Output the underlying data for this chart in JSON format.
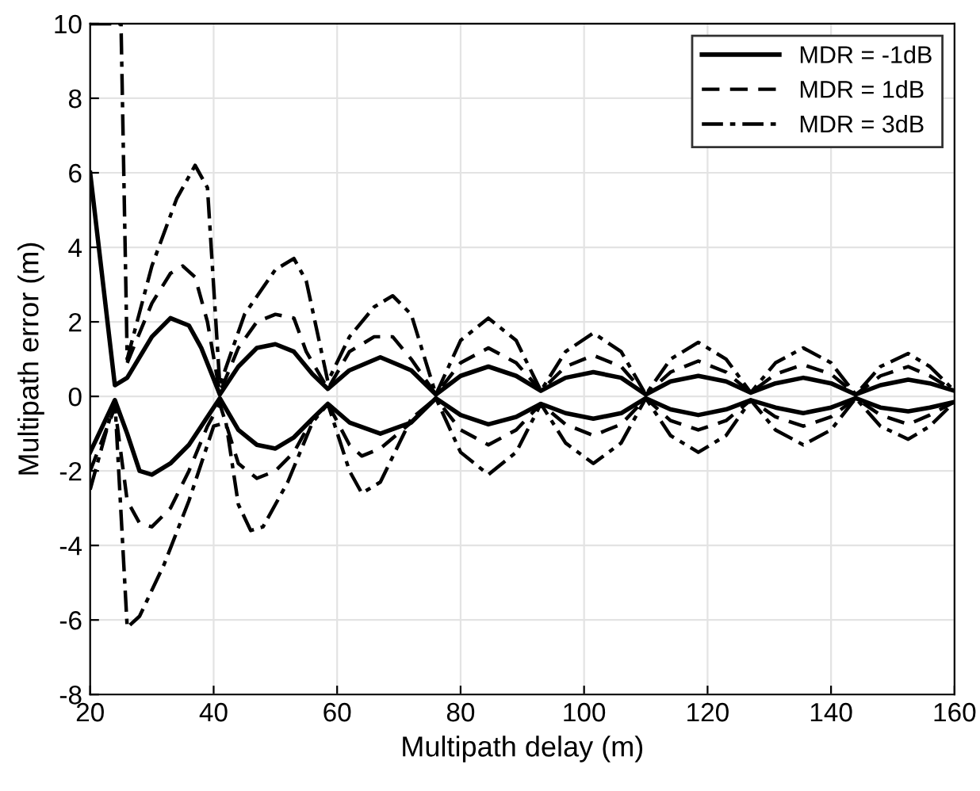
{
  "chart_data": {
    "type": "line",
    "xlabel": "Multipath delay (m)",
    "ylabel": "Multipath error (m)",
    "xlim": [
      20,
      160
    ],
    "ylim": [
      -8,
      10
    ],
    "xticks": [
      20,
      40,
      60,
      80,
      100,
      120,
      140,
      160
    ],
    "yticks": [
      -8,
      -6,
      -4,
      -2,
      0,
      2,
      4,
      6,
      8,
      10
    ],
    "grid": true,
    "legend": "top right",
    "marker": "none",
    "series": [
      {
        "name": "MDR = -1dB",
        "color": "#000000",
        "line_style": "solid",
        "x": [
          20,
          24,
          26,
          30,
          33,
          36,
          38,
          41,
          44,
          47,
          50,
          53,
          56,
          58.5,
          62,
          67,
          72,
          76,
          80,
          84.5,
          89,
          93,
          97,
          101.5,
          106,
          110,
          114,
          118.5,
          123,
          127,
          131,
          135.5,
          140,
          144,
          148,
          152.5,
          156,
          160
        ],
        "values": [
          6,
          0.3,
          0.5,
          1.6,
          2.1,
          1.9,
          1.3,
          0.05,
          0.8,
          1.3,
          1.4,
          1.2,
          0.6,
          0.2,
          0.7,
          1.05,
          0.7,
          0.05,
          0.55,
          0.8,
          0.55,
          0.15,
          0.5,
          0.65,
          0.5,
          0.05,
          0.4,
          0.55,
          0.4,
          0.1,
          0.35,
          0.5,
          0.35,
          0.05,
          0.3,
          0.45,
          0.35,
          0.15
        ]
      },
      {
        "name": "MDR = 1dB",
        "color": "#000000",
        "line_style": "dashed",
        "x": [
          26,
          30,
          33,
          35,
          37,
          39,
          41,
          44,
          47,
          50,
          53,
          55,
          58.5,
          62,
          66,
          69,
          72,
          76,
          80,
          84.5,
          89,
          93,
          97,
          101.5,
          106,
          110,
          114,
          118.5,
          123,
          127,
          131,
          135.5,
          140,
          144,
          148,
          152.5,
          156,
          160
        ],
        "values": [
          0.9,
          2.5,
          3.3,
          3.5,
          3.2,
          2.0,
          0.1,
          1.3,
          2.0,
          2.2,
          2.1,
          1.2,
          0.2,
          1.2,
          1.6,
          1.6,
          1.0,
          0.05,
          0.9,
          1.3,
          0.9,
          0.15,
          0.8,
          1.1,
          0.8,
          0.05,
          0.65,
          0.95,
          0.65,
          0.1,
          0.6,
          0.85,
          0.6,
          0.05,
          0.55,
          0.8,
          0.55,
          0.15
        ]
      },
      {
        "name": "MDR = 3dB",
        "color": "#000000",
        "line_style": "dashdot",
        "x": [
          20,
          25,
          26,
          30,
          34,
          37,
          39,
          41,
          45,
          50,
          53,
          55,
          58.5,
          62,
          66,
          69,
          72,
          76,
          80,
          84.5,
          89,
          93,
          97,
          101.5,
          106,
          110,
          114,
          118.5,
          123,
          127,
          131,
          135.5,
          140,
          144,
          148,
          152.5,
          156,
          160
        ],
        "values": [
          10,
          10,
          1.0,
          3.5,
          5.3,
          6.2,
          5.6,
          0.3,
          2.2,
          3.4,
          3.7,
          3.1,
          0.4,
          1.6,
          2.4,
          2.7,
          2.2,
          0.05,
          1.5,
          2.1,
          1.5,
          0.15,
          1.2,
          1.7,
          1.2,
          0.05,
          1.0,
          1.45,
          1.0,
          0.1,
          0.9,
          1.3,
          0.9,
          0.05,
          0.8,
          1.15,
          0.8,
          0.15
        ]
      },
      {
        "color": "#000000",
        "line_style": "solid",
        "x": [
          20,
          24,
          26,
          28,
          30,
          33,
          36,
          38,
          41,
          44,
          47,
          50,
          53,
          56,
          58.5,
          62,
          67,
          72,
          76,
          80,
          84.5,
          89,
          93,
          97,
          101.5,
          106,
          110,
          114,
          118.5,
          123,
          127,
          131,
          135.5,
          140,
          144,
          148,
          152.5,
          156,
          160
        ],
        "values": [
          -1.5,
          -0.1,
          -1.0,
          -2.0,
          -2.1,
          -1.8,
          -1.3,
          -0.8,
          -0.05,
          -0.9,
          -1.3,
          -1.4,
          -1.1,
          -0.6,
          -0.2,
          -0.7,
          -1.0,
          -0.7,
          -0.05,
          -0.5,
          -0.75,
          -0.55,
          -0.2,
          -0.45,
          -0.6,
          -0.45,
          -0.05,
          -0.35,
          -0.5,
          -0.35,
          -0.1,
          -0.3,
          -0.45,
          -0.3,
          -0.05,
          -0.3,
          -0.4,
          -0.3,
          -0.15
        ]
      },
      {
        "color": "#000000",
        "line_style": "dashed",
        "x": [
          20,
          24,
          26,
          28,
          30,
          33,
          36,
          39,
          41,
          44,
          47,
          50,
          53,
          56,
          58.5,
          62,
          64,
          67,
          72,
          76,
          80,
          84.5,
          89,
          93,
          97,
          101.5,
          106,
          110,
          114,
          118.5,
          123,
          127,
          131,
          135.5,
          140,
          144,
          148,
          152.5,
          156,
          160
        ],
        "values": [
          -2.0,
          -0.3,
          -2.8,
          -3.4,
          -3.5,
          -3.0,
          -2.0,
          -0.8,
          -0.2,
          -1.8,
          -2.2,
          -2.0,
          -1.5,
          -0.6,
          -0.2,
          -1.3,
          -1.6,
          -1.4,
          -0.7,
          -0.05,
          -0.9,
          -1.3,
          -0.9,
          -0.2,
          -0.75,
          -1.05,
          -0.75,
          -0.05,
          -0.65,
          -0.9,
          -0.65,
          -0.1,
          -0.55,
          -0.8,
          -0.55,
          -0.05,
          -0.5,
          -0.75,
          -0.5,
          -0.15
        ]
      },
      {
        "color": "#000000",
        "line_style": "dashdot",
        "x": [
          20,
          24,
          26,
          28,
          32,
          36,
          40,
          42,
          44,
          46,
          48,
          52,
          56,
          58.5,
          62,
          64,
          67,
          72,
          76,
          80,
          84.5,
          89,
          93,
          97,
          101.5,
          106,
          110,
          114,
          118.5,
          123,
          127,
          131,
          135.5,
          140,
          144,
          148,
          152.5,
          156,
          160
        ],
        "values": [
          -2.5,
          -0.1,
          -6.2,
          -5.9,
          -4.5,
          -2.8,
          -0.8,
          -0.7,
          -2.9,
          -3.6,
          -3.5,
          -2.3,
          -0.7,
          -0.2,
          -2.0,
          -2.6,
          -2.3,
          -0.6,
          -0.05,
          -1.5,
          -2.1,
          -1.5,
          -0.2,
          -1.25,
          -1.8,
          -1.25,
          -0.05,
          -1.05,
          -1.5,
          -1.05,
          -0.1,
          -0.9,
          -1.3,
          -0.9,
          -0.05,
          -0.8,
          -1.15,
          -0.8,
          -0.15
        ]
      }
    ]
  }
}
